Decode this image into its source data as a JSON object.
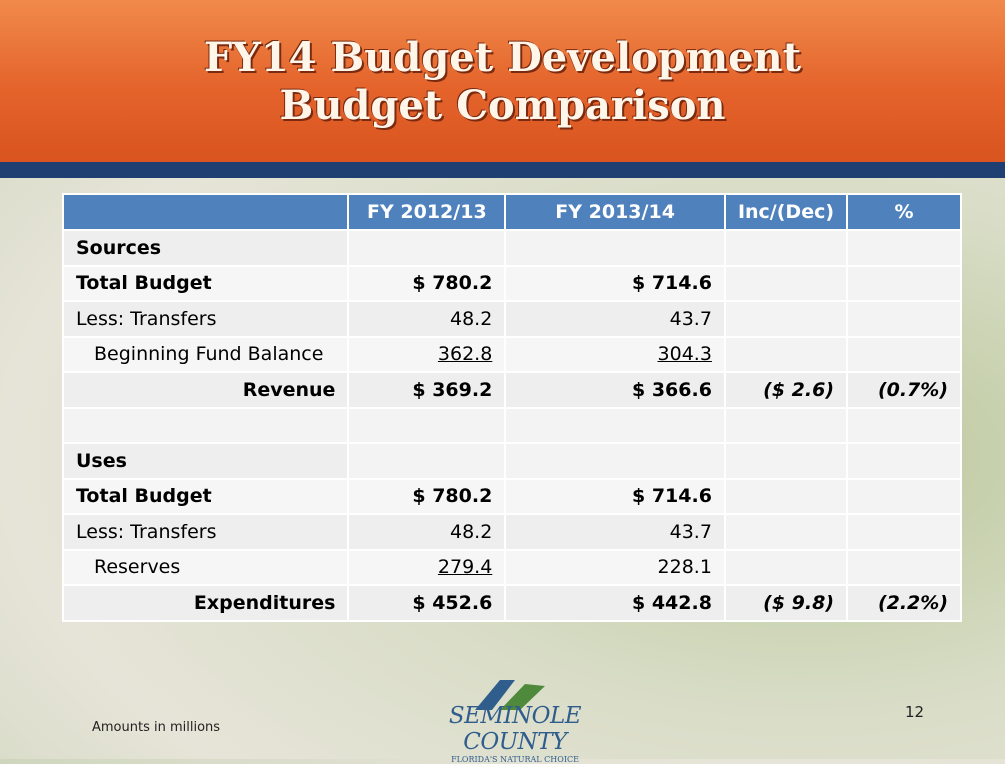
{
  "header": {
    "title": [
      "FY14 Budget Development",
      "Budget Comparison"
    ]
  },
  "table": {
    "columns": [
      "FY 2012/13",
      "FY 2013/14",
      "Inc/(Dec)",
      "%"
    ],
    "rows": [
      {
        "label": "Sources"
      },
      {
        "label": "Total  Budget",
        "fy2012_13": "$ 780.2",
        "fy2013_14": "$ 714.6"
      },
      {
        "label": "Less: Transfers",
        "fy2012_13": "48.2",
        "fy2013_14": "43.7"
      },
      {
        "label": "Beginning Fund Balance",
        "fy2012_13": "362.8",
        "fy2013_14": "304.3"
      },
      {
        "label": "Revenue",
        "fy2012_13": "$ 369.2",
        "fy2013_14": "$ 366.6",
        "change": "($ 2.6)",
        "percent": "(0.7%)"
      },
      {},
      {
        "label": "Uses"
      },
      {
        "label": "Total Budget",
        "fy2012_13": "$ 780.2",
        "fy2013_14": "$ 714.6"
      },
      {
        "label": "Less: Transfers",
        "fy2012_13": "48.2",
        "fy2013_14": "43.7"
      },
      {
        "label": "Reserves",
        "fy2012_13": "279.4",
        "fy2013_14": "228.1"
      },
      {
        "label": "Expenditures",
        "fy2012_13": "$ 452.6",
        "fy2013_14": "$ 442.8",
        "change": "($ 9.8)",
        "percent": "(2.2%)"
      }
    ]
  },
  "footer": {
    "note": "Amounts in millions",
    "page_number": "12",
    "logo": {
      "name": "SEMINOLE COUNTY",
      "tagline": "FLORIDA'S NATURAL CHOICE"
    }
  }
}
